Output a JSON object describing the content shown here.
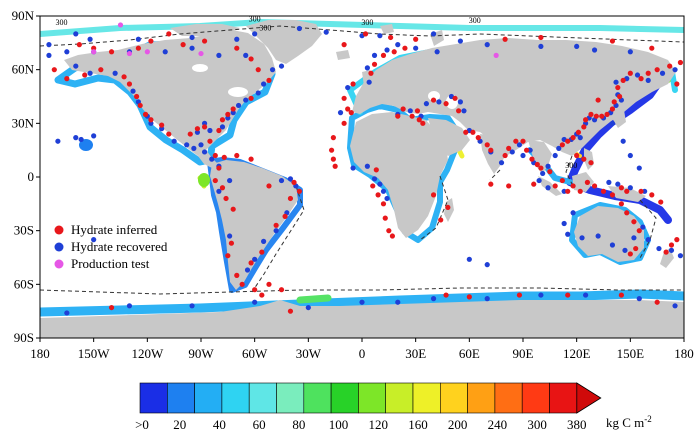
{
  "map": {
    "lat_labels": [
      {
        "text": "90N",
        "lat": 90
      },
      {
        "text": "60N",
        "lat": 60
      },
      {
        "text": "30N",
        "lat": 30
      },
      {
        "text": "0",
        "lat": 0
      },
      {
        "text": "30S",
        "lat": -30
      },
      {
        "text": "60S",
        "lat": -60
      },
      {
        "text": "90S",
        "lat": -90
      }
    ],
    "lon_labels": [
      {
        "text": "180",
        "lon": -180
      },
      {
        "text": "150W",
        "lon": -150
      },
      {
        "text": "120W",
        "lon": -120
      },
      {
        "text": "90W",
        "lon": -90
      },
      {
        "text": "60W",
        "lon": -60
      },
      {
        "text": "30W",
        "lon": -30
      },
      {
        "text": "0",
        "lon": 0
      },
      {
        "text": "30E",
        "lon": 30
      },
      {
        "text": "60E",
        "lon": 60
      },
      {
        "text": "90E",
        "lon": 90
      },
      {
        "text": "120E",
        "lon": 120
      },
      {
        "text": "150E",
        "lon": 150
      },
      {
        "text": "180",
        "lon": 180
      }
    ],
    "contour_labels": [
      {
        "text": "300",
        "lon": -168,
        "lat": 85
      },
      {
        "text": "300",
        "lon": -60,
        "lat": 87
      },
      {
        "text": "300",
        "lon": -54,
        "lat": 82
      },
      {
        "text": "300",
        "lon": 3,
        "lat": 85
      },
      {
        "text": "300",
        "lon": 63,
        "lat": 86
      },
      {
        "text": "300",
        "lon": 117,
        "lat": 5
      }
    ],
    "land_color": "#c8c8c8",
    "ocean_color": "#ffffff",
    "border_color": "#000000"
  },
  "legend": {
    "items": [
      {
        "label": "Hydrate inferred",
        "color": "#e8171b"
      },
      {
        "label": "Hydrate recovered",
        "color": "#1f3fd6"
      },
      {
        "label": "Production test",
        "color": "#e657e6"
      }
    ]
  },
  "colorbar": {
    "tick_labels": [
      ">0",
      "20",
      "40",
      "60",
      "80",
      "100",
      "120",
      "160",
      "200",
      "240",
      "300",
      "380"
    ],
    "unit": "kg C m",
    "unit_superscript": "-2",
    "colors": [
      "#1a2ee6",
      "#1e80f0",
      "#23aef4",
      "#2fd3f2",
      "#5fe6e6",
      "#7aedbd",
      "#4ee25e",
      "#28d228",
      "#7de628",
      "#c8ee28",
      "#eef028",
      "#ffd21e",
      "#ffa014",
      "#ff6e14",
      "#ff3a14",
      "#e81414",
      "#d00a0a"
    ]
  },
  "sites": {
    "inferred": [
      [
        -158,
        74
      ],
      [
        -140,
        70
      ],
      [
        -125,
        72
      ],
      [
        -100,
        74
      ],
      [
        -70,
        72
      ],
      [
        -62,
        66
      ],
      [
        -58,
        60
      ],
      [
        -52,
        54
      ],
      [
        -62,
        44
      ],
      [
        -72,
        38
      ],
      [
        -75,
        35
      ],
      [
        -78,
        32
      ],
      [
        -80,
        26
      ],
      [
        -88,
        28
      ],
      [
        -92,
        27
      ],
      [
        -96,
        24
      ],
      [
        -108,
        24
      ],
      [
        -112,
        29
      ],
      [
        -118,
        32
      ],
      [
        -121,
        35
      ],
      [
        -124,
        40
      ],
      [
        -126,
        45
      ],
      [
        -130,
        52
      ],
      [
        -133,
        56
      ],
      [
        -146,
        60
      ],
      [
        -155,
        57
      ],
      [
        -165,
        55
      ],
      [
        -172,
        60
      ],
      [
        -85,
        20
      ],
      [
        -82,
        12
      ],
      [
        -77,
        11
      ],
      [
        -70,
        12
      ],
      [
        -62,
        10
      ],
      [
        -80,
        5
      ],
      [
        -82,
        -2
      ],
      [
        -78,
        -6
      ],
      [
        -76,
        -12
      ],
      [
        -72,
        -18
      ],
      [
        -73,
        -37
      ],
      [
        -75,
        -44
      ],
      [
        -48,
        -27
      ],
      [
        -43,
        -22
      ],
      [
        -40,
        -12
      ],
      [
        -35,
        -8
      ],
      [
        -38,
        -3
      ],
      [
        -52,
        -5
      ],
      [
        -56,
        -42
      ],
      [
        -62,
        -48
      ],
      [
        -70,
        -55
      ],
      [
        -67,
        -60
      ],
      [
        -60,
        -63
      ],
      [
        -56,
        -66
      ],
      [
        -52,
        -60
      ],
      [
        -45,
        -63
      ],
      [
        7,
        63
      ],
      [
        12,
        68
      ],
      [
        18,
        70
      ],
      [
        24,
        72
      ],
      [
        5,
        58
      ],
      [
        -5,
        52
      ],
      [
        -10,
        44
      ],
      [
        -8,
        38
      ],
      [
        -6,
        36
      ],
      [
        -10,
        30
      ],
      [
        -16,
        22
      ],
      [
        -17,
        15
      ],
      [
        -16,
        10
      ],
      [
        -15,
        6
      ],
      [
        8,
        4
      ],
      [
        6,
        -5
      ],
      [
        9,
        -10
      ],
      [
        12,
        -15
      ],
      [
        13,
        -23
      ],
      [
        15,
        -30
      ],
      [
        17,
        -33
      ],
      [
        20,
        34
      ],
      [
        23,
        38
      ],
      [
        28,
        34
      ],
      [
        31,
        37
      ],
      [
        40,
        43
      ],
      [
        47,
        41
      ],
      [
        52,
        44
      ],
      [
        54,
        37
      ],
      [
        58,
        25
      ],
      [
        62,
        25
      ],
      [
        65,
        22
      ],
      [
        70,
        18
      ],
      [
        72,
        15
      ],
      [
        80,
        12
      ],
      [
        82,
        16
      ],
      [
        86,
        20
      ],
      [
        90,
        20
      ],
      [
        92,
        15
      ],
      [
        95,
        10
      ],
      [
        98,
        7
      ],
      [
        100,
        5
      ],
      [
        105,
        3
      ],
      [
        108,
        -5
      ],
      [
        115,
        -8
      ],
      [
        118,
        -5
      ],
      [
        122,
        -8
      ],
      [
        126,
        -3
      ],
      [
        130,
        -5
      ],
      [
        135,
        -8
      ],
      [
        140,
        -10
      ],
      [
        145,
        -15
      ],
      [
        148,
        -20
      ],
      [
        152,
        -25
      ],
      [
        155,
        -30
      ],
      [
        153,
        -40
      ],
      [
        150,
        -43
      ],
      [
        170,
        -42
      ],
      [
        173,
        -38
      ],
      [
        176,
        -35
      ],
      [
        112,
        18
      ],
      [
        115,
        20
      ],
      [
        118,
        22
      ],
      [
        121,
        25
      ],
      [
        124,
        28
      ],
      [
        125,
        32
      ],
      [
        128,
        35
      ],
      [
        131,
        34
      ],
      [
        134,
        34
      ],
      [
        137,
        35
      ],
      [
        140,
        38
      ],
      [
        141,
        42
      ],
      [
        144,
        45
      ],
      [
        143,
        50
      ],
      [
        146,
        54
      ],
      [
        150,
        58
      ],
      [
        156,
        55
      ],
      [
        160,
        58
      ],
      [
        165,
        60
      ],
      [
        172,
        62
      ],
      [
        178,
        64
      ],
      [
        176,
        52
      ],
      [
        132,
        43
      ],
      [
        112,
        -2
      ],
      [
        120,
        12
      ],
      [
        124,
        10
      ],
      [
        128,
        8
      ],
      [
        145,
        -6
      ],
      [
        148,
        -8
      ],
      [
        156,
        -8
      ],
      [
        162,
        -10
      ],
      [
        167,
        -14
      ],
      [
        96,
        -4
      ],
      [
        88,
        -66
      ],
      [
        115,
        -66
      ],
      [
        145,
        -66
      ],
      [
        165,
        -70
      ],
      [
        -140,
        -73
      ],
      [
        -40,
        -75
      ],
      [
        47,
        -66
      ],
      [
        60,
        -67
      ],
      [
        34,
        30
      ],
      [
        32,
        32
      ],
      [
        44,
        -24
      ],
      [
        48,
        -17
      ],
      [
        40,
        -10
      ],
      [
        72,
        -4
      ],
      [
        82,
        -5
      ],
      [
        -150,
        72
      ],
      [
        -10,
        74
      ],
      [
        2,
        80
      ],
      [
        16,
        78
      ],
      [
        30,
        77
      ],
      [
        -108,
        80
      ],
      [
        -118,
        76
      ],
      [
        -88,
        76
      ],
      [
        80,
        77
      ],
      [
        100,
        78
      ],
      [
        140,
        76
      ],
      [
        162,
        72
      ]
    ],
    "recovered": [
      [
        -175,
        68
      ],
      [
        -160,
        62
      ],
      [
        -152,
        58
      ],
      [
        -138,
        58
      ],
      [
        -128,
        48
      ],
      [
        -125,
        42
      ],
      [
        -120,
        34
      ],
      [
        -118,
        30
      ],
      [
        -112,
        27
      ],
      [
        -105,
        20
      ],
      [
        -98,
        18
      ],
      [
        -94,
        16
      ],
      [
        -92,
        25
      ],
      [
        -88,
        30
      ],
      [
        -85,
        26
      ],
      [
        -90,
        18
      ],
      [
        -88,
        14
      ],
      [
        -84,
        10
      ],
      [
        -78,
        28
      ],
      [
        -75,
        33
      ],
      [
        -72,
        36
      ],
      [
        -69,
        40
      ],
      [
        -65,
        43
      ],
      [
        -58,
        47
      ],
      [
        -55,
        52
      ],
      [
        -50,
        60
      ],
      [
        -45,
        62
      ],
      [
        -65,
        68
      ],
      [
        -80,
        68
      ],
      [
        -95,
        72
      ],
      [
        -110,
        70
      ],
      [
        -130,
        70
      ],
      [
        -150,
        70
      ],
      [
        -165,
        70
      ],
      [
        -175,
        74
      ],
      [
        -152,
        77
      ],
      [
        -160,
        80
      ],
      [
        -80,
        6
      ],
      [
        -74,
        -2
      ],
      [
        -80,
        -8
      ],
      [
        -74,
        -33
      ],
      [
        -55,
        -36
      ],
      [
        -48,
        -30
      ],
      [
        -42,
        -20
      ],
      [
        -37,
        -5
      ],
      [
        -40,
        -1
      ],
      [
        -45,
        -2
      ],
      [
        -60,
        -46
      ],
      [
        -64,
        -52
      ],
      [
        3,
        61
      ],
      [
        7,
        68
      ],
      [
        14,
        71
      ],
      [
        20,
        74
      ],
      [
        30,
        72
      ],
      [
        42,
        70
      ],
      [
        4,
        53
      ],
      [
        -8,
        50
      ],
      [
        -12,
        36
      ],
      [
        20,
        35
      ],
      [
        27,
        37
      ],
      [
        33,
        34
      ],
      [
        36,
        41
      ],
      [
        43,
        42
      ],
      [
        50,
        45
      ],
      [
        55,
        42
      ],
      [
        57,
        37
      ],
      [
        60,
        26
      ],
      [
        66,
        20
      ],
      [
        72,
        14
      ],
      [
        78,
        8
      ],
      [
        84,
        14
      ],
      [
        88,
        18
      ],
      [
        90,
        12
      ],
      [
        94,
        15
      ],
      [
        96,
        8
      ],
      [
        101,
        2
      ],
      [
        104,
        6
      ],
      [
        108,
        12
      ],
      [
        110,
        16
      ],
      [
        113,
        21
      ],
      [
        117,
        21
      ],
      [
        120,
        24
      ],
      [
        122,
        22
      ],
      [
        125,
        30
      ],
      [
        127,
        33
      ],
      [
        130,
        32
      ],
      [
        135,
        33
      ],
      [
        139,
        36
      ],
      [
        142,
        40
      ],
      [
        145,
        43
      ],
      [
        143,
        46
      ],
      [
        142,
        53
      ],
      [
        148,
        55
      ],
      [
        154,
        57
      ],
      [
        160,
        54
      ],
      [
        168,
        58
      ],
      [
        175,
        60
      ],
      [
        140,
        30
      ],
      [
        146,
        20
      ],
      [
        150,
        12
      ],
      [
        155,
        5
      ],
      [
        138,
        -3
      ],
      [
        143,
        -4
      ],
      [
        150,
        -6
      ],
      [
        158,
        -8
      ],
      [
        113,
        -8
      ],
      [
        104,
        -6
      ],
      [
        99,
        -2
      ],
      [
        118,
        -20
      ],
      [
        113,
        -26
      ],
      [
        115,
        -32
      ],
      [
        123,
        -34
      ],
      [
        132,
        -33
      ],
      [
        140,
        -38
      ],
      [
        147,
        -41
      ],
      [
        152,
        -34
      ],
      [
        157,
        -28
      ],
      [
        160,
        -35
      ],
      [
        166,
        -40
      ],
      [
        173,
        -41
      ],
      [
        178,
        -44
      ],
      [
        7,
        -1
      ],
      [
        10,
        -4
      ],
      [
        12,
        -8
      ],
      [
        14,
        -12
      ],
      [
        -5,
        5
      ],
      [
        3,
        6
      ],
      [
        -150,
        -35
      ],
      [
        -130,
        -72
      ],
      [
        -95,
        -72
      ],
      [
        -60,
        -70
      ],
      [
        -30,
        -73
      ],
      [
        0,
        -70
      ],
      [
        20,
        -70
      ],
      [
        40,
        -68
      ],
      [
        70,
        -68
      ],
      [
        100,
        -66
      ],
      [
        125,
        -66
      ],
      [
        155,
        -68
      ],
      [
        175,
        -72
      ],
      [
        -165,
        -76
      ],
      [
        -170,
        20
      ],
      [
        -150,
        23
      ],
      [
        -157,
        21
      ],
      [
        -160,
        22
      ],
      [
        60,
        -46
      ],
      [
        70,
        -49
      ],
      [
        100,
        73
      ],
      [
        120,
        73
      ],
      [
        130,
        71
      ],
      [
        150,
        70
      ],
      [
        -35,
        83
      ],
      [
        -20,
        81
      ],
      [
        0,
        79
      ],
      [
        10,
        79
      ],
      [
        40,
        80
      ],
      [
        55,
        76
      ],
      [
        70,
        74
      ],
      [
        -125,
        77
      ],
      [
        -95,
        78
      ],
      [
        -70,
        77
      ],
      [
        -60,
        80
      ]
    ],
    "production": [
      [
        -150,
        70
      ],
      [
        -130,
        69
      ],
      [
        -120,
        70
      ],
      [
        -90,
        69
      ],
      [
        75,
        68
      ],
      [
        -135,
        85
      ]
    ]
  }
}
